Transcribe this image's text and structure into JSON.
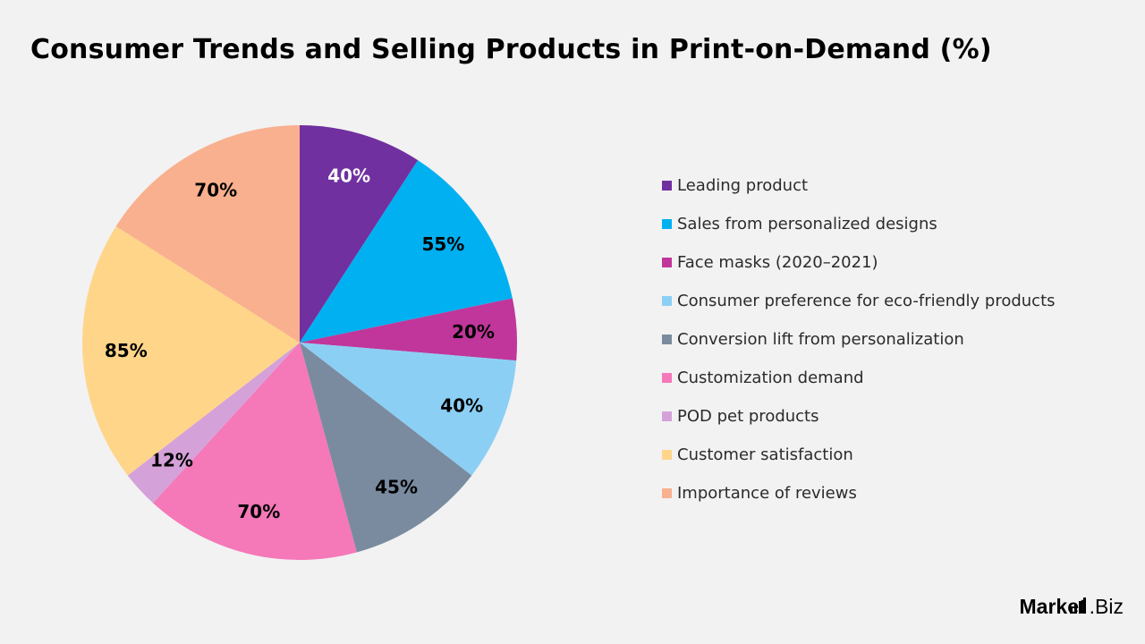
{
  "header": {
    "title": "Consumer Trends and Selling Products in Print-on-Demand (%)"
  },
  "chart_data": {
    "type": "pie",
    "title": "Consumer Trends and Selling Products in Print-on-Demand (%)",
    "legend_position": "right",
    "slices": [
      {
        "label": "Leading product",
        "value": 40,
        "display": "40%",
        "color": "#7030a0"
      },
      {
        "label": "Sales from personalized designs",
        "value": 55,
        "display": "55%",
        "color": "#00b0f0"
      },
      {
        "label": "Face masks (2020–2021)",
        "value": 20,
        "display": "20%",
        "color": "#c0369a"
      },
      {
        "label": "Consumer preference for eco-friendly products",
        "value": 40,
        "display": "40%",
        "color": "#8ccff5"
      },
      {
        "label": "Conversion lift from personalization",
        "value": 45,
        "display": "45%",
        "color": "#7a8b9f"
      },
      {
        "label": "Customization demand",
        "value": 70,
        "display": "70%",
        "color": "#f578b8"
      },
      {
        "label": "POD pet products",
        "value": 12,
        "display": "12%",
        "color": "#d4a2d9"
      },
      {
        "label": "Customer satisfaction",
        "value": 85,
        "display": "85%",
        "color": "#ffd58a"
      },
      {
        "label": "Importance of reviews",
        "value": 70,
        "display": "70%",
        "color": "#f9b08e"
      }
    ]
  },
  "branding": {
    "logo_text_prefix": "Market",
    "logo_text_suffix": ".Biz"
  }
}
